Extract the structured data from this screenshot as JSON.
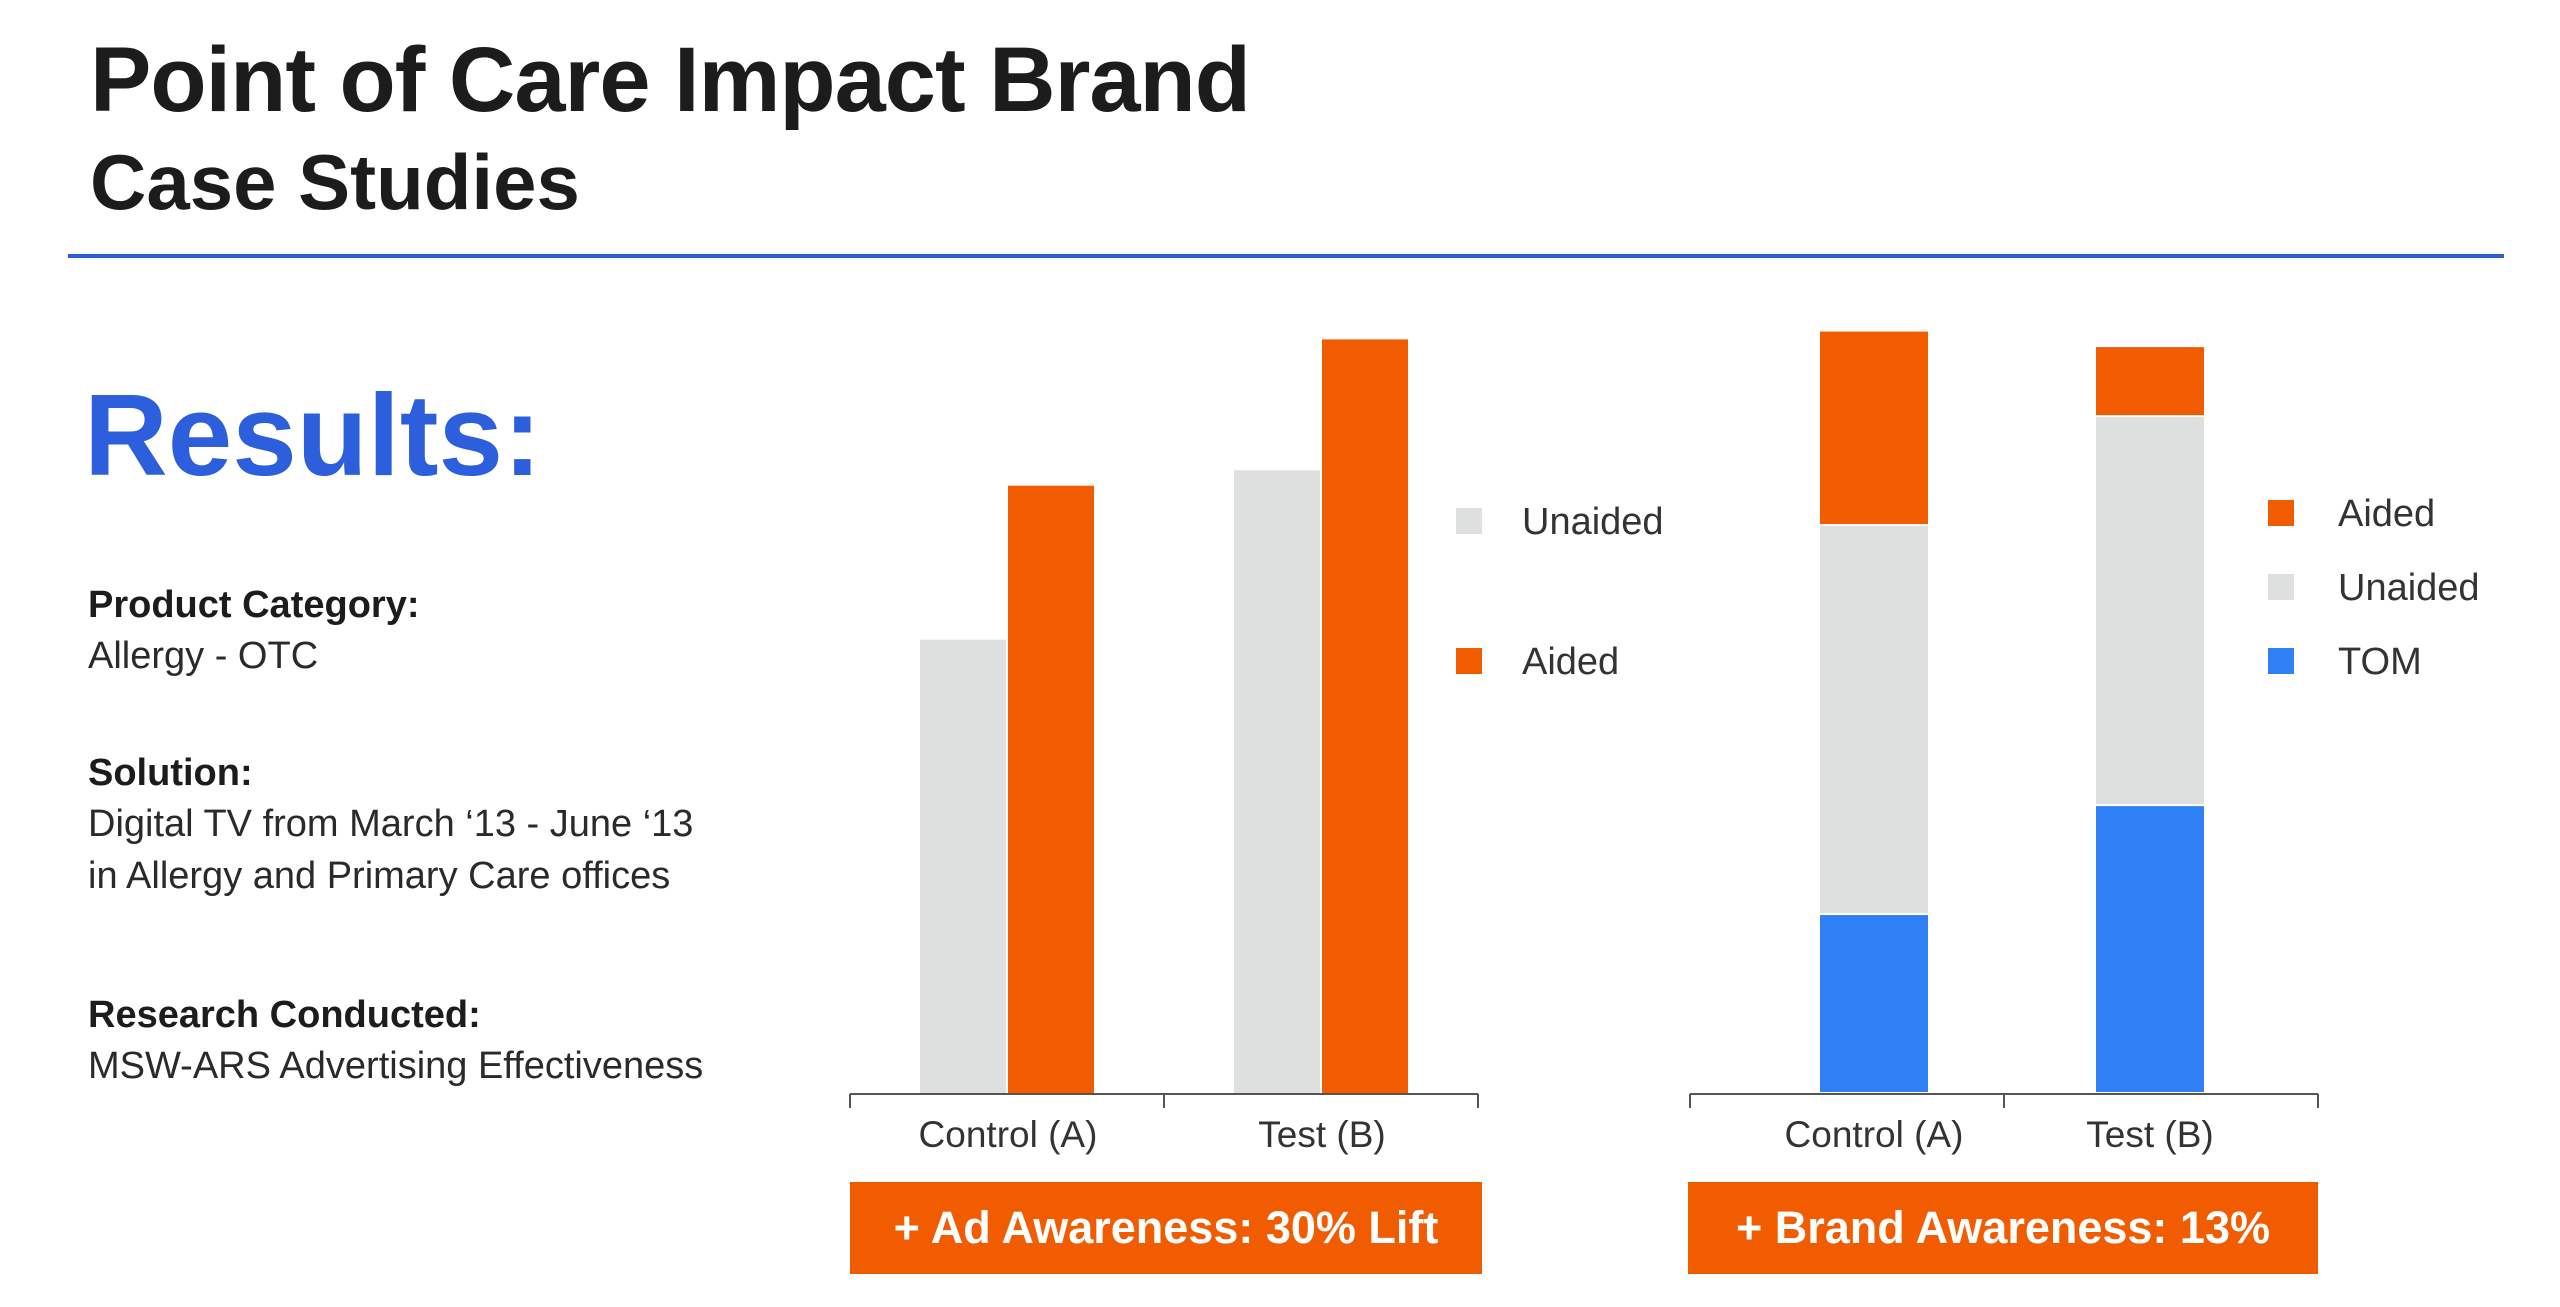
{
  "header": {
    "title": "Point of Care Impact Brand",
    "subtitle": "Case Studies"
  },
  "results": {
    "heading": "Results:",
    "product_category_label": "Product Category:",
    "product_category_value": "Allergy - OTC",
    "solution_label": "Solution:",
    "solution_line1": "Digital TV from March ‘13 - June ‘13",
    "solution_line2": "in Allergy and Primary Care offices",
    "research_label": "Research Conducted:",
    "research_value": "MSW-ARS Advertising Effectiveness"
  },
  "callouts": {
    "ad_awareness": "+ Ad Awareness: 30% Lift",
    "brand_awareness": "+ Brand Awareness: 13%"
  },
  "colors": {
    "unaided": "#dde0de",
    "aided": "#f25c00",
    "tom": "#2f80f5",
    "accent_blue": "#2d5fdc"
  },
  "chart_data": [
    {
      "type": "bar",
      "categories": [
        "Control (A)",
        "Test (B)"
      ],
      "series": [
        {
          "name": "Unaided",
          "values": [
            59,
            81
          ]
        },
        {
          "name": "Aided",
          "values": [
            79,
            98
          ]
        }
      ],
      "ylim": [
        0,
        100
      ],
      "legend": "right",
      "grid": false
    },
    {
      "type": "bar",
      "stacked": true,
      "categories": [
        "Control (A)",
        "Test (B)"
      ],
      "series": [
        {
          "name": "TOM",
          "values": [
            23,
            37
          ]
        },
        {
          "name": "Unaided",
          "values": [
            50,
            50
          ]
        },
        {
          "name": "Aided",
          "values": [
            25,
            9
          ]
        }
      ],
      "legend_order": [
        "Aided",
        "Unaided",
        "TOM"
      ],
      "ylim": [
        0,
        100
      ],
      "legend": "right",
      "grid": false
    }
  ]
}
